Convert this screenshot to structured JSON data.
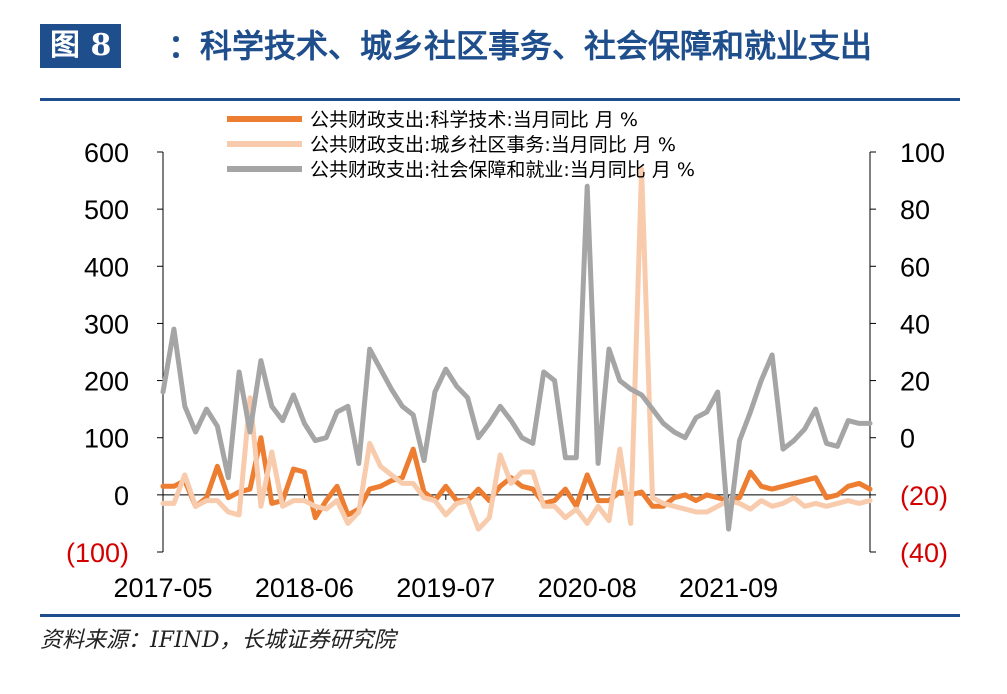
{
  "header": {
    "badge": "图 8",
    "title": "：科学技术、城乡社区事务、社会保障和就业支出"
  },
  "source": "资料来源：IFIND，长城证券研究院",
  "colors": {
    "accent": "#1f4e8c",
    "negative_label": "#d40000"
  },
  "chart_data": {
    "type": "line",
    "x": [
      "2017-05",
      "2017-06",
      "2017-07",
      "2017-08",
      "2017-09",
      "2017-10",
      "2017-11",
      "2017-12",
      "2018-01",
      "2018-02",
      "2018-03",
      "2018-04",
      "2018-05",
      "2018-06",
      "2018-07",
      "2018-08",
      "2018-09",
      "2018-10",
      "2018-11",
      "2018-12",
      "2019-01",
      "2019-02",
      "2019-03",
      "2019-04",
      "2019-05",
      "2019-06",
      "2019-07",
      "2019-08",
      "2019-09",
      "2019-10",
      "2019-11",
      "2019-12",
      "2020-01",
      "2020-02",
      "2020-03",
      "2020-04",
      "2020-05",
      "2020-06",
      "2020-07",
      "2020-08",
      "2020-09",
      "2020-10",
      "2020-11",
      "2020-12",
      "2021-01",
      "2021-02",
      "2021-03",
      "2021-04",
      "2021-05",
      "2021-06",
      "2021-07",
      "2021-08",
      "2021-09",
      "2021-10",
      "2021-11",
      "2021-12",
      "2022-01",
      "2022-02",
      "2022-03",
      "2022-04",
      "2022-05",
      "2022-06",
      "2022-07",
      "2022-08",
      "2022-09",
      "2022-10"
    ],
    "x_tick_labels": [
      "2017-05",
      "2018-06",
      "2019-07",
      "2020-08",
      "2021-09"
    ],
    "legend_position": "top",
    "grid": false,
    "axes": {
      "left": {
        "ylim": [
          -100,
          600
        ],
        "ticks": [
          600,
          500,
          400,
          300,
          200,
          100,
          0,
          -100
        ],
        "tick_labels": [
          "600",
          "500",
          "400",
          "300",
          "200",
          "100",
          "0",
          "(100)"
        ]
      },
      "right": {
        "ylim": [
          -40,
          100
        ],
        "ticks": [
          100,
          80,
          60,
          40,
          20,
          0,
          -20,
          -40
        ],
        "tick_labels": [
          "100",
          "80",
          "60",
          "40",
          "20",
          "0",
          "(20)",
          "(40)"
        ]
      }
    },
    "series": [
      {
        "name": "公共财政支出:科学技术:当月同比 月 %",
        "axis": "left",
        "color": "#ed7d31",
        "values": [
          15,
          15,
          25,
          -20,
          -5,
          50,
          -5,
          5,
          10,
          100,
          -15,
          -10,
          45,
          40,
          -40,
          -10,
          15,
          -35,
          -25,
          10,
          15,
          25,
          30,
          80,
          5,
          -10,
          15,
          -10,
          -10,
          10,
          -10,
          15,
          30,
          15,
          10,
          -15,
          -10,
          10,
          -20,
          35,
          -10,
          -10,
          5,
          0,
          5,
          -20,
          -20,
          -5,
          0,
          -10,
          0,
          -5,
          -10,
          -5,
          40,
          15,
          10,
          15,
          20,
          25,
          30,
          -5,
          0,
          15,
          20,
          10
        ]
      },
      {
        "name": "公共财政支出:城乡社区事务:当月同比 月 %",
        "axis": "left",
        "color": "#f8cbad",
        "values": [
          -15,
          -15,
          35,
          -20,
          -10,
          -10,
          -30,
          -35,
          170,
          -20,
          75,
          -20,
          -10,
          -10,
          -20,
          -25,
          -10,
          -50,
          -30,
          90,
          50,
          35,
          20,
          20,
          -5,
          -10,
          -35,
          -15,
          -10,
          -60,
          -40,
          70,
          20,
          40,
          40,
          -20,
          -20,
          -40,
          -25,
          -50,
          -20,
          -45,
          80,
          -50,
          570,
          -5,
          -15,
          -20,
          -25,
          -30,
          -30,
          -20,
          -10,
          -15,
          -25,
          -10,
          -20,
          -15,
          -5,
          -20,
          -15,
          -20,
          -15,
          -10,
          -15,
          -10
        ]
      },
      {
        "name": "公共财政支出:社会保障和就业:当月同比 月 %",
        "axis": "right",
        "color": "#a5a5a5",
        "values": [
          16,
          38,
          11,
          2,
          10,
          4,
          -14,
          23,
          2,
          27,
          11,
          6,
          15,
          5,
          -1,
          0,
          9,
          11,
          -9,
          31,
          24,
          17,
          11,
          8,
          -8,
          16,
          24,
          18,
          14,
          0,
          5,
          11,
          6,
          0,
          -2,
          23,
          20,
          -7,
          -7,
          88,
          -9,
          31,
          20,
          17,
          15,
          10,
          5,
          2,
          0,
          7,
          9,
          16,
          -32,
          -1,
          9,
          20,
          29,
          -4,
          -1,
          3,
          10,
          -2,
          -3,
          6,
          5,
          5
        ]
      }
    ]
  }
}
